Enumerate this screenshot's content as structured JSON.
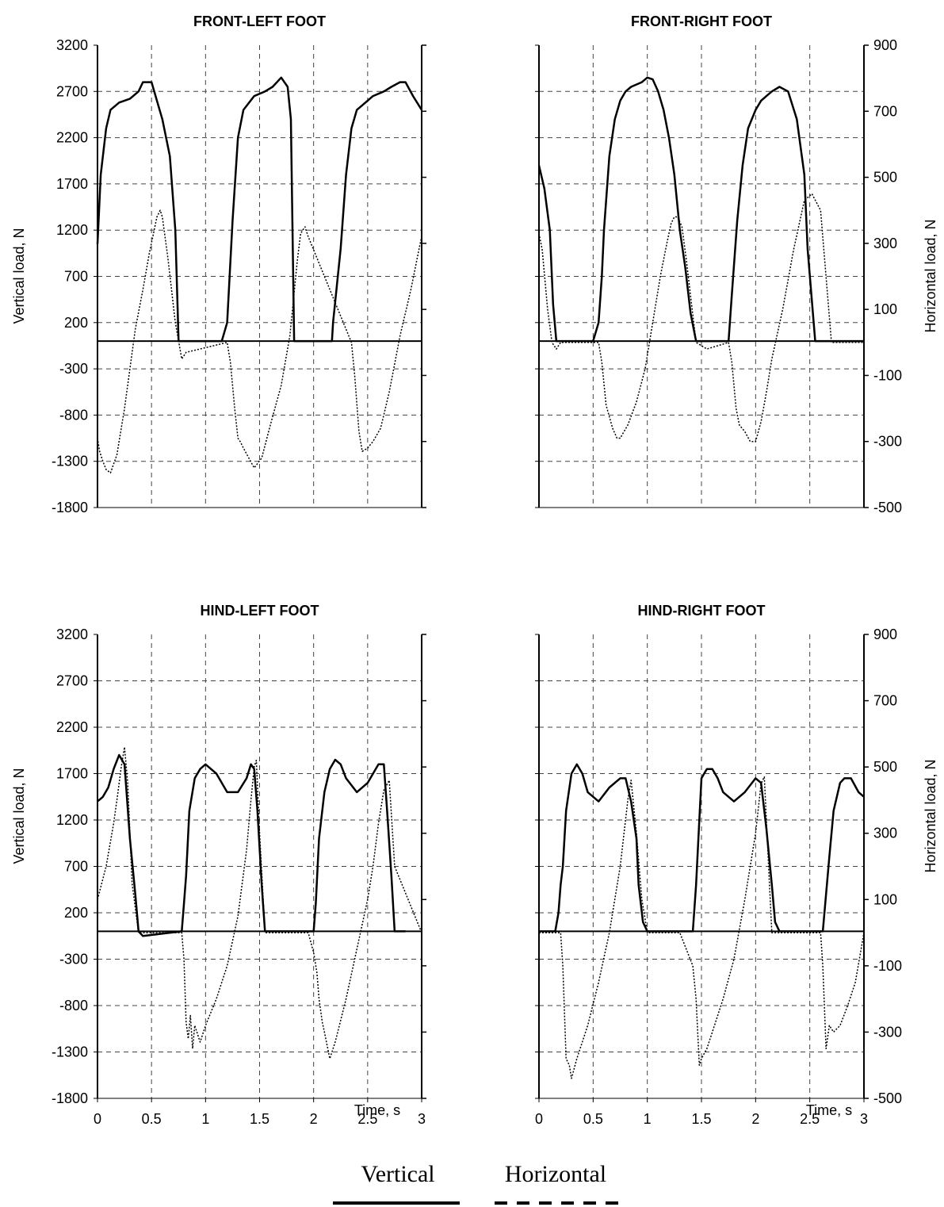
{
  "legend": {
    "vertical": "Vertical",
    "horizontal": "Horizontal"
  },
  "axes": {
    "left_label": "Vertical load, N",
    "right_label": "Horizontal load, N",
    "x_label": "Time, s",
    "left_ticks": [
      "3200",
      "2700",
      "2200",
      "1700",
      "1200",
      "700",
      "200",
      "-300",
      "-800",
      "-1300",
      "-1800"
    ],
    "right_ticks": [
      "900",
      "700",
      "500",
      "300",
      "100",
      "-100",
      "-300",
      "-500"
    ],
    "x_ticks": [
      "0",
      "0.5",
      "1",
      "1.5",
      "2",
      "2.5",
      "3"
    ]
  },
  "chart_data": [
    {
      "type": "line",
      "title": "FRONT-LEFT FOOT",
      "xlim": [
        0,
        3
      ],
      "ylim_left": [
        -1800,
        3200
      ],
      "ylim_right": [
        -500,
        900
      ],
      "series": [
        {
          "name": "Vertical",
          "axis": "left",
          "style": "solid",
          "x": [
            0,
            0.03,
            0.08,
            0.12,
            0.2,
            0.3,
            0.38,
            0.42,
            0.5,
            0.55,
            0.6,
            0.67,
            0.72,
            0.75,
            1.15,
            1.2,
            1.25,
            1.3,
            1.35,
            1.45,
            1.55,
            1.62,
            1.7,
            1.76,
            1.79,
            1.82,
            2.17,
            2.18,
            2.25,
            2.3,
            2.35,
            2.4,
            2.45,
            2.55,
            2.65,
            2.72,
            2.8,
            2.85,
            2.92,
            3.0
          ],
          "y": [
            1050,
            1800,
            2300,
            2500,
            2580,
            2620,
            2700,
            2800,
            2800,
            2600,
            2400,
            2000,
            1200,
            0,
            0,
            200,
            1300,
            2200,
            2500,
            2650,
            2700,
            2750,
            2850,
            2750,
            2400,
            0,
            0,
            200,
            1000,
            1800,
            2300,
            2500,
            2550,
            2650,
            2700,
            2750,
            2800,
            2800,
            2650,
            2500
          ]
        },
        {
          "name": "Horizontal",
          "axis": "right",
          "style": "dotted",
          "x": [
            0,
            0.02,
            0.05,
            0.08,
            0.12,
            0.18,
            0.25,
            0.3,
            0.35,
            0.42,
            0.48,
            0.55,
            0.58,
            0.6,
            0.65,
            0.72,
            0.78,
            0.82,
            1.2,
            1.23,
            1.27,
            1.3,
            1.32,
            1.35,
            1.4,
            1.45,
            1.52,
            1.6,
            1.7,
            1.78,
            1.82,
            1.85,
            1.88,
            1.92,
            1.95,
            2.35,
            2.38,
            2.42,
            2.45,
            2.5,
            2.55,
            2.62,
            2.7,
            2.8,
            2.9,
            2.98,
            3.0
          ],
          "y": [
            -290,
            -330,
            -360,
            -385,
            -395,
            -340,
            -200,
            -80,
            40,
            160,
            270,
            380,
            400,
            380,
            260,
            60,
            -50,
            -30,
            0,
            -60,
            -200,
            -290,
            -300,
            -320,
            -350,
            -380,
            -350,
            -250,
            -130,
            20,
            150,
            250,
            330,
            350,
            320,
            0,
            -100,
            -270,
            -330,
            -320,
            -300,
            -260,
            -150,
            20,
            160,
            290,
            320
          ]
        }
      ]
    },
    {
      "type": "line",
      "title": "FRONT-RIGHT FOOT",
      "xlim": [
        0,
        3
      ],
      "ylim_left": [
        -1800,
        3200
      ],
      "ylim_right": [
        -500,
        900
      ],
      "series": [
        {
          "name": "Vertical",
          "axis": "left",
          "style": "solid",
          "x": [
            0,
            0.05,
            0.1,
            0.13,
            0.16,
            0.5,
            0.55,
            0.58,
            0.6,
            0.65,
            0.7,
            0.75,
            0.8,
            0.85,
            0.95,
            1.0,
            1.05,
            1.1,
            1.15,
            1.2,
            1.25,
            1.3,
            1.35,
            1.4,
            1.45,
            1.5,
            1.57,
            1.6,
            1.75,
            1.78,
            1.83,
            1.88,
            1.93,
            2.0,
            2.05,
            2.1,
            2.15,
            2.22,
            2.3,
            2.38,
            2.45,
            2.48,
            2.55,
            3.0
          ],
          "y": [
            1900,
            1650,
            1200,
            400,
            0,
            0,
            200,
            700,
            1200,
            2000,
            2400,
            2600,
            2700,
            2750,
            2800,
            2850,
            2830,
            2700,
            2500,
            2200,
            1800,
            1200,
            800,
            300,
            0,
            0,
            0,
            0,
            0,
            500,
            1300,
            1900,
            2300,
            2500,
            2600,
            2650,
            2700,
            2750,
            2700,
            2400,
            1800,
            1000,
            0,
            0
          ]
        },
        {
          "name": "Horizontal",
          "axis": "right",
          "style": "dotted",
          "x": [
            0,
            0.03,
            0.08,
            0.12,
            0.16,
            0.2,
            0.55,
            0.58,
            0.62,
            0.68,
            0.72,
            0.75,
            0.82,
            0.9,
            0.98,
            1.05,
            1.12,
            1.18,
            1.22,
            1.25,
            1.28,
            1.32,
            1.36,
            1.45,
            1.55,
            1.75,
            1.78,
            1.82,
            1.85,
            1.9,
            1.95,
            2.0,
            2.05,
            2.1,
            2.15,
            2.25,
            2.35,
            2.45,
            2.52,
            2.6,
            2.7,
            3.0
          ],
          "y": [
            330,
            280,
            100,
            0,
            -20,
            0,
            0,
            -60,
            -190,
            -260,
            -290,
            -290,
            -250,
            -180,
            -80,
            60,
            200,
            300,
            360,
            380,
            380,
            350,
            250,
            0,
            -20,
            0,
            -60,
            -200,
            -250,
            -270,
            -300,
            -300,
            -240,
            -150,
            -50,
            100,
            280,
            430,
            450,
            400,
            0,
            0
          ]
        }
      ]
    },
    {
      "type": "line",
      "title": "HIND-LEFT FOOT",
      "xlim": [
        0,
        3
      ],
      "ylim_left": [
        -1800,
        3200
      ],
      "ylim_right": [
        -500,
        900
      ],
      "series": [
        {
          "name": "Vertical",
          "axis": "left",
          "style": "solid",
          "x": [
            0,
            0.05,
            0.1,
            0.15,
            0.2,
            0.25,
            0.3,
            0.35,
            0.38,
            0.42,
            0.78,
            0.8,
            0.82,
            0.85,
            0.9,
            0.95,
            1.0,
            1.1,
            1.2,
            1.3,
            1.38,
            1.42,
            1.45,
            1.48,
            1.52,
            1.55,
            1.58,
            2.0,
            2.02,
            2.05,
            2.1,
            2.15,
            2.2,
            2.25,
            2.3,
            2.4,
            2.5,
            2.6,
            2.65,
            2.68,
            2.72,
            2.75,
            2.8,
            2.82,
            2.85
          ],
          "y": [
            1400,
            1450,
            1550,
            1750,
            1900,
            1800,
            1000,
            400,
            0,
            -50,
            0,
            300,
            600,
            1300,
            1650,
            1750,
            1800,
            1700,
            1500,
            1500,
            1650,
            1800,
            1750,
            1300,
            500,
            0,
            0,
            0,
            300,
            1000,
            1500,
            1750,
            1850,
            1800,
            1650,
            1500,
            1600,
            1800,
            1800,
            1300,
            600,
            0,
            0,
            0,
            0
          ]
        },
        {
          "name": "Horizontal",
          "axis": "right",
          "style": "dotted",
          "x": [
            0,
            0.08,
            0.15,
            0.18,
            0.22,
            0.25,
            0.28,
            0.32,
            0.38,
            0.5,
            0.6,
            0.7,
            0.78,
            0.8,
            0.82,
            0.84,
            0.86,
            0.88,
            0.9,
            0.95,
            1.0,
            1.1,
            1.2,
            1.3,
            1.38,
            1.42,
            1.45,
            1.47,
            1.5,
            1.55,
            1.6,
            1.95,
            2.0,
            2.03,
            2.05,
            2.08,
            2.1,
            2.15,
            2.2,
            2.3,
            2.4,
            2.5,
            2.55,
            2.6,
            2.65,
            2.7,
            2.75,
            3.0
          ],
          "y": [
            100,
            200,
            330,
            400,
            500,
            560,
            450,
            150,
            0,
            0,
            0,
            0,
            0,
            -80,
            -270,
            -320,
            -250,
            -350,
            -280,
            -330,
            -280,
            -200,
            -100,
            50,
            250,
            400,
            500,
            520,
            300,
            0,
            0,
            0,
            -60,
            -120,
            -200,
            -270,
            -300,
            -380,
            -330,
            -200,
            -50,
            100,
            200,
            330,
            430,
            460,
            200,
            0
          ]
        }
      ]
    },
    {
      "type": "line",
      "title": "HIND-RIGHT FOOT",
      "xlim": [
        0,
        3
      ],
      "ylim_left": [
        -1800,
        3200
      ],
      "ylim_right": [
        -500,
        900
      ],
      "series": [
        {
          "name": "Vertical",
          "axis": "left",
          "style": "solid",
          "x": [
            0,
            0.15,
            0.18,
            0.2,
            0.22,
            0.25,
            0.3,
            0.35,
            0.4,
            0.45,
            0.55,
            0.65,
            0.75,
            0.8,
            0.85,
            0.9,
            0.92,
            0.96,
            1.0,
            1.02,
            1.42,
            1.45,
            1.48,
            1.5,
            1.55,
            1.6,
            1.65,
            1.7,
            1.8,
            1.9,
            2.0,
            2.05,
            2.1,
            2.15,
            2.18,
            2.22,
            2.25,
            2.62,
            2.65,
            2.68,
            2.72,
            2.78,
            2.82,
            2.88,
            2.95,
            3.0
          ],
          "y": [
            0,
            0,
            200,
            500,
            700,
            1300,
            1700,
            1800,
            1700,
            1500,
            1400,
            1550,
            1650,
            1650,
            1400,
            1000,
            500,
            100,
            0,
            0,
            0,
            500,
            1200,
            1650,
            1750,
            1750,
            1650,
            1500,
            1400,
            1500,
            1650,
            1600,
            1100,
            500,
            100,
            0,
            0,
            0,
            400,
            800,
            1300,
            1600,
            1650,
            1650,
            1500,
            1450
          ]
        },
        {
          "name": "Horizontal",
          "axis": "right",
          "style": "dotted",
          "x": [
            0,
            0.2,
            0.22,
            0.25,
            0.28,
            0.3,
            0.35,
            0.45,
            0.55,
            0.65,
            0.75,
            0.82,
            0.85,
            0.9,
            0.95,
            1.0,
            1.3,
            1.42,
            1.45,
            1.48,
            1.5,
            1.55,
            1.6,
            1.7,
            1.8,
            1.9,
            2.0,
            2.05,
            2.08,
            2.12,
            2.15,
            2.2,
            2.6,
            2.62,
            2.65,
            2.68,
            2.72,
            2.78,
            2.85,
            2.92,
            3.0
          ],
          "y": [
            0,
            0,
            -100,
            -380,
            -400,
            -440,
            -380,
            -280,
            -150,
            0,
            200,
            400,
            460,
            300,
            100,
            0,
            0,
            -100,
            -200,
            -400,
            -380,
            -350,
            -300,
            -200,
            -80,
            100,
            300,
            450,
            470,
            200,
            0,
            0,
            0,
            -100,
            -350,
            -280,
            -300,
            -280,
            -220,
            -150,
            0
          ]
        }
      ]
    }
  ]
}
